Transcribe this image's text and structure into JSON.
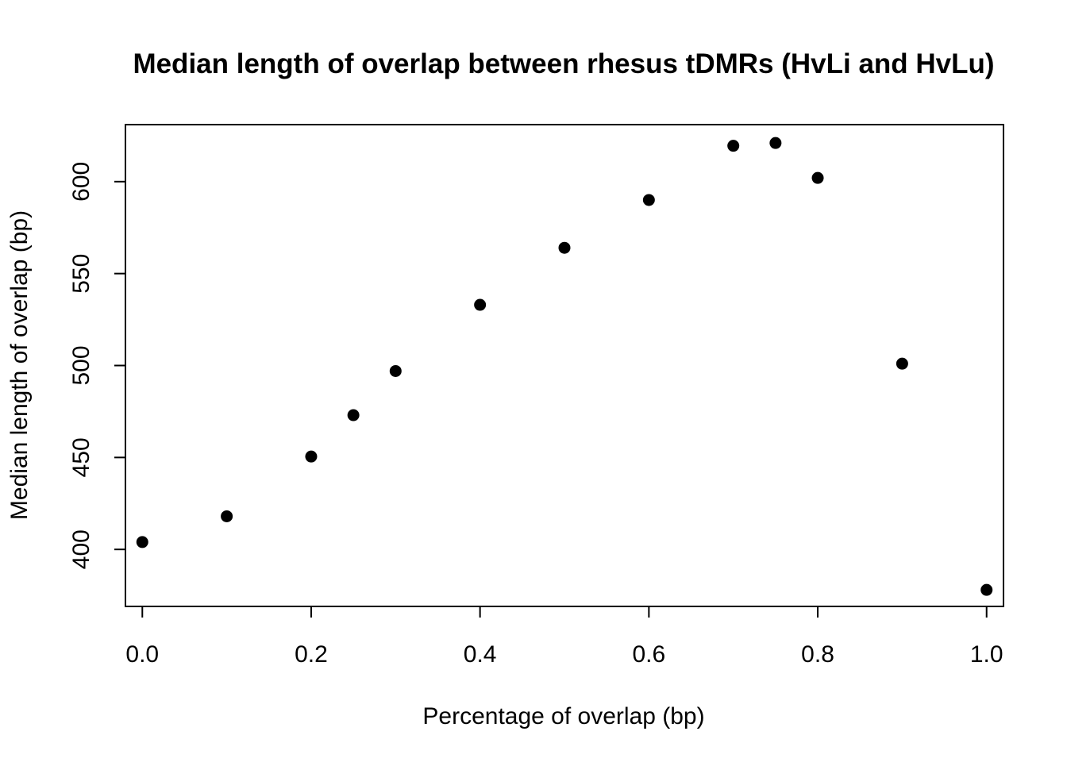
{
  "chart_data": {
    "type": "scatter",
    "title": "Median length of overlap between rhesus tDMRs (HvLi and HvLu)",
    "xlabel": "Percentage of overlap (bp)",
    "ylabel": "Median length of overlap (bp)",
    "xlim": [
      -0.02,
      1.02
    ],
    "ylim": [
      369,
      631
    ],
    "x_ticks": [
      0.0,
      0.2,
      0.4,
      0.6,
      0.8,
      1.0
    ],
    "x_tick_labels": [
      "0.0",
      "0.2",
      "0.4",
      "0.6",
      "0.8",
      "1.0"
    ],
    "y_ticks": [
      400,
      450,
      500,
      550,
      600
    ],
    "y_tick_labels": [
      "400",
      "450",
      "500",
      "550",
      "600"
    ],
    "grid": false,
    "marker_color": "#000000",
    "points": [
      {
        "x": 0.0,
        "y": 404
      },
      {
        "x": 0.1,
        "y": 418
      },
      {
        "x": 0.2,
        "y": 450.5
      },
      {
        "x": 0.25,
        "y": 473
      },
      {
        "x": 0.3,
        "y": 497
      },
      {
        "x": 0.4,
        "y": 533
      },
      {
        "x": 0.5,
        "y": 564
      },
      {
        "x": 0.6,
        "y": 590
      },
      {
        "x": 0.7,
        "y": 619.5
      },
      {
        "x": 0.75,
        "y": 621
      },
      {
        "x": 0.8,
        "y": 602
      },
      {
        "x": 0.9,
        "y": 501
      },
      {
        "x": 1.0,
        "y": 378
      }
    ]
  }
}
